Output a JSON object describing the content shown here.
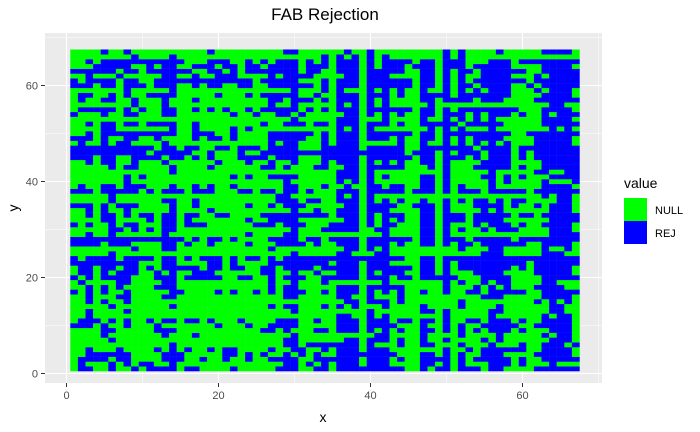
{
  "chart_data": {
    "type": "heatmap",
    "title": "FAB Rejection",
    "xlabel": "x",
    "ylabel": "y",
    "xlim": [
      0,
      67
    ],
    "ylim": [
      0,
      67
    ],
    "x_ticks": [
      0,
      20,
      40,
      60
    ],
    "y_ticks": [
      0,
      20,
      40,
      60
    ],
    "grid": true,
    "legend": {
      "title": "value",
      "placement": "right",
      "entries": [
        {
          "label": "NULL",
          "color": "#00ff00"
        },
        {
          "label": "REJ",
          "color": "#0000ff"
        }
      ]
    },
    "cell_range": {
      "x": [
        1,
        67
      ],
      "y": [
        1,
        67
      ]
    },
    "matrix_note": "Binary per-cell values (NULL/REJ) across a 67x67 grid; dense mixed pattern."
  },
  "colors": {
    "panel_bg": "#ebebeb",
    "gridline": "#ffffff",
    "null": "#00ff00",
    "rej": "#0000ff"
  }
}
